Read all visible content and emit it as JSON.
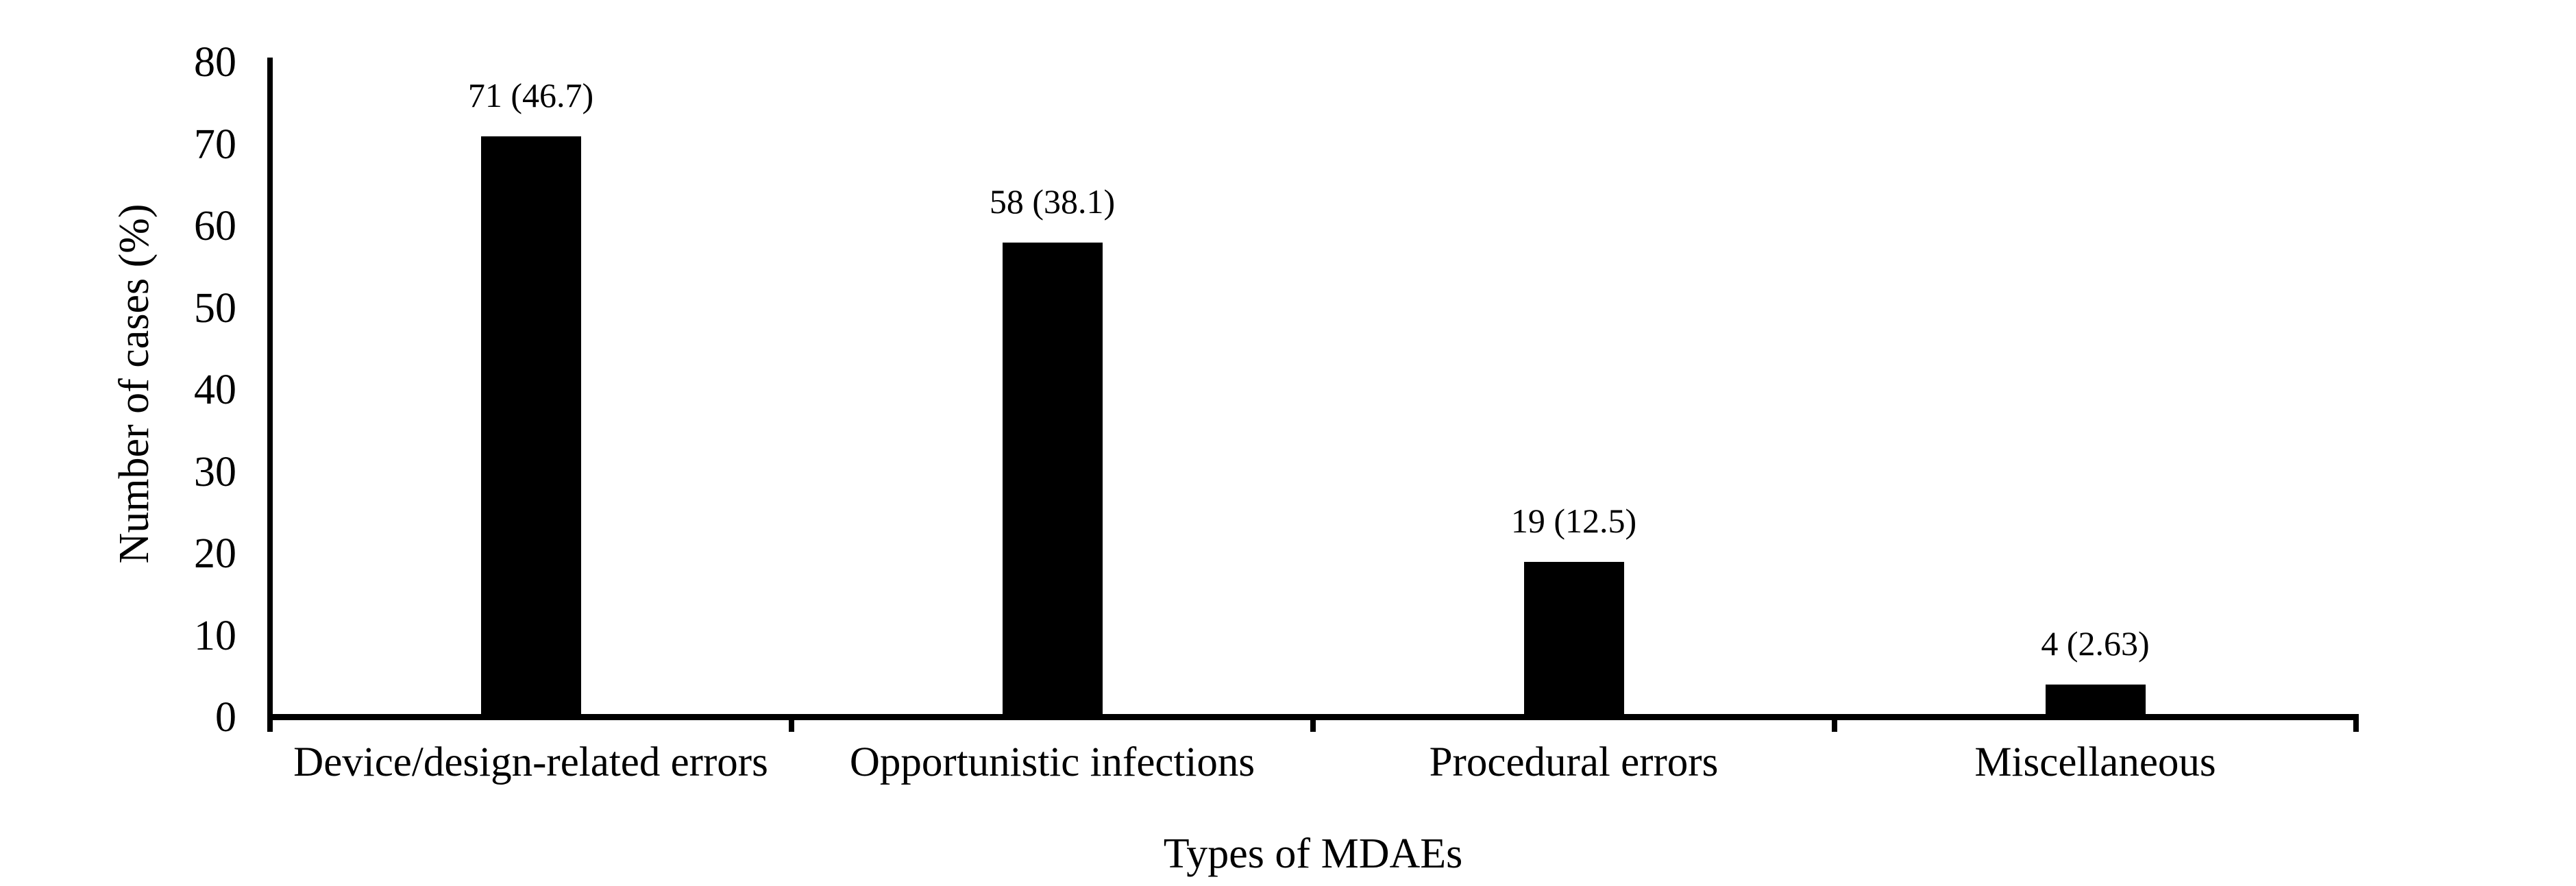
{
  "figure": {
    "background": "#ffffff",
    "bar_color": "#000000",
    "axis_color": "#000000",
    "text_color": "#000000"
  },
  "chart_data": {
    "type": "bar",
    "title": "",
    "xlabel": "Types of MDAEs",
    "ylabel": "Number of cases (%)",
    "categories": [
      "Device/design-related errors",
      "Opportunistic infections",
      "Procedural errors",
      "Miscellaneous"
    ],
    "series": [
      {
        "name": "Number of cases",
        "values": [
          71,
          58,
          19,
          4
        ],
        "percentages": [
          46.7,
          38.1,
          12.5,
          2.63
        ],
        "data_labels": [
          "71 (46.7)",
          "58 (38.1)",
          "19 (12.5)",
          "4 (2.63)"
        ]
      }
    ],
    "ylim": [
      0,
      80
    ],
    "yticks": [
      0,
      10,
      20,
      30,
      40,
      50,
      60,
      70,
      80
    ],
    "grid": "off",
    "legend": "none"
  }
}
